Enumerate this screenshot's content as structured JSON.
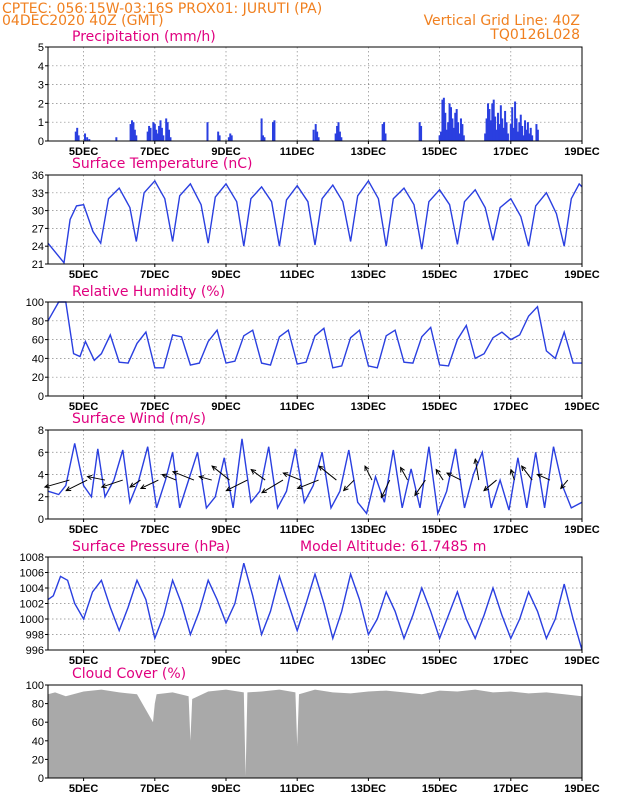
{
  "header": {
    "line1": "CPTEC:   056:15W-03:16S   PROX01: JURUTI (PA)",
    "line2": "04DEC2020 40Z (GMT)",
    "grid_note": "Vertical Grid Line: 40Z",
    "code": "TQ0126L028"
  },
  "colors": {
    "line": "#2a3fe0",
    "bar": "#2a3fe0",
    "cloud": "#a9a9a9",
    "title": "#e0007f",
    "header": "#f08020",
    "arrow": "#000000"
  },
  "x_axis": {
    "start_day": 4.0,
    "end_day": 19.0,
    "tick_days": [
      5,
      7,
      9,
      11,
      13,
      15,
      17,
      19
    ],
    "tick_labels": [
      "5DEC",
      "7DEC",
      "9DEC",
      "11DEC",
      "13DEC",
      "15DEC",
      "17DEC",
      "19DEC"
    ]
  },
  "chart_data": [
    {
      "type": "bar",
      "id": "precip",
      "title": "Precipitation (mm/h)",
      "ylim": [
        0,
        5
      ],
      "yticks": [
        0,
        1,
        2,
        3,
        4,
        5
      ],
      "grid": true,
      "x": [
        4.78,
        4.82,
        4.86,
        5.04,
        5.1,
        5.16,
        5.92,
        6.32,
        6.36,
        6.4,
        6.44,
        6.48,
        6.8,
        6.84,
        6.88,
        6.96,
        7.0,
        7.04,
        7.08,
        7.12,
        7.16,
        7.2,
        7.24,
        7.32,
        7.36,
        7.4,
        7.44,
        8.48,
        8.78,
        8.82,
        9.08,
        9.12,
        9.16,
        10.0,
        10.04,
        10.08,
        10.32,
        10.36,
        11.46,
        11.52,
        11.56,
        11.6,
        12.08,
        12.12,
        12.16,
        12.2,
        12.24,
        13.4,
        13.44,
        13.48,
        14.44,
        14.48,
        15.0,
        15.04,
        15.08,
        15.12,
        15.16,
        15.2,
        15.24,
        15.28,
        15.32,
        15.36,
        15.4,
        15.44,
        15.48,
        15.52,
        15.56,
        15.6,
        15.64,
        15.68,
        16.28,
        16.32,
        16.36,
        16.4,
        16.44,
        16.48,
        16.52,
        16.56,
        16.6,
        16.64,
        16.68,
        16.72,
        16.76,
        16.8,
        16.84,
        16.88,
        16.92,
        17.0,
        17.04,
        17.08,
        17.12,
        17.16,
        17.2,
        17.24,
        17.28,
        17.32,
        17.36,
        17.4,
        17.44,
        17.48,
        17.52,
        17.56,
        17.6,
        17.72,
        17.76
      ],
      "values": [
        0.5,
        0.7,
        0.3,
        0.4,
        0.2,
        0.1,
        0.2,
        0.9,
        1.1,
        1.0,
        0.6,
        0.3,
        0.5,
        0.8,
        0.7,
        1.0,
        0.9,
        0.6,
        0.4,
        0.8,
        1.1,
        0.7,
        0.3,
        1.2,
        1.0,
        0.6,
        0.2,
        1.0,
        0.5,
        0.3,
        0.2,
        0.4,
        0.3,
        1.2,
        0.3,
        0.2,
        1.0,
        1.1,
        0.6,
        0.9,
        0.5,
        0.2,
        0.4,
        0.8,
        1.0,
        0.5,
        0.2,
        0.9,
        1.0,
        0.4,
        1.0,
        0.8,
        0.3,
        0.5,
        2.2,
        2.3,
        1.5,
        0.6,
        1.0,
        2.0,
        1.8,
        1.2,
        0.7,
        1.5,
        1.7,
        1.0,
        0.4,
        1.2,
        0.9,
        0.3,
        0.4,
        1.2,
        2.0,
        1.7,
        1.1,
        2.0,
        2.2,
        1.3,
        0.6,
        1.5,
        0.9,
        1.9,
        1.2,
        0.7,
        1.6,
        1.0,
        0.4,
        0.9,
        1.8,
        0.7,
        2.1,
        1.2,
        0.5,
        1.0,
        1.4,
        0.8,
        0.3,
        1.1,
        0.6,
        1.0,
        0.4,
        0.7,
        0.3,
        0.9,
        0.6
      ]
    },
    {
      "type": "line",
      "id": "temp",
      "title": "Surface Temperature (nC)",
      "ylim": [
        21,
        36
      ],
      "yticks": [
        21,
        24,
        27,
        30,
        33,
        36
      ],
      "grid": true,
      "x": [
        4.0,
        4.45,
        4.62,
        4.8,
        5.0,
        5.26,
        5.48,
        5.7,
        6.0,
        6.3,
        6.48,
        6.7,
        7.0,
        7.28,
        7.5,
        7.7,
        8.0,
        8.3,
        8.5,
        8.7,
        9.0,
        9.3,
        9.5,
        9.7,
        10.0,
        10.28,
        10.5,
        10.7,
        11.0,
        11.3,
        11.5,
        11.7,
        12.0,
        12.28,
        12.5,
        12.7,
        13.0,
        13.28,
        13.5,
        13.7,
        14.0,
        14.28,
        14.5,
        14.7,
        15.0,
        15.28,
        15.5,
        15.7,
        16.0,
        16.28,
        16.5,
        16.7,
        17.0,
        17.28,
        17.5,
        17.7,
        18.0,
        18.28,
        18.5,
        18.7,
        18.92,
        19.0
      ],
      "values": [
        24.5,
        21.2,
        28.5,
        30.8,
        31.0,
        26.5,
        24.5,
        32.0,
        33.8,
        30.5,
        24.8,
        33.0,
        35.0,
        32.0,
        24.8,
        32.5,
        34.5,
        31.0,
        24.5,
        32.3,
        34.5,
        31.5,
        24.0,
        32.0,
        34.0,
        31.5,
        24.0,
        31.8,
        34.2,
        31.5,
        24.2,
        32.0,
        34.3,
        31.5,
        24.8,
        32.5,
        35.0,
        32.0,
        24.0,
        32.0,
        33.8,
        31.0,
        23.5,
        31.5,
        33.5,
        31.0,
        24.3,
        31.5,
        33.5,
        30.5,
        25.0,
        30.5,
        32.0,
        29.0,
        24.0,
        30.8,
        33.0,
        29.5,
        24.0,
        32.0,
        34.5,
        34.0
      ]
    },
    {
      "type": "line",
      "id": "rh",
      "title": "Relative Humidity (%)",
      "ylim": [
        0,
        100
      ],
      "yticks": [
        0,
        20,
        40,
        60,
        80,
        100
      ],
      "grid": true,
      "x": [
        4.0,
        4.3,
        4.5,
        4.72,
        4.9,
        5.05,
        5.3,
        5.5,
        5.75,
        6.0,
        6.25,
        6.5,
        6.75,
        7.0,
        7.25,
        7.5,
        7.75,
        8.0,
        8.25,
        8.5,
        8.75,
        9.0,
        9.25,
        9.5,
        9.75,
        10.0,
        10.25,
        10.5,
        10.75,
        11.0,
        11.25,
        11.5,
        11.75,
        12.0,
        12.25,
        12.5,
        12.75,
        13.0,
        13.25,
        13.5,
        13.75,
        14.0,
        14.25,
        14.5,
        14.75,
        15.0,
        15.25,
        15.5,
        15.75,
        16.0,
        16.25,
        16.5,
        16.75,
        17.0,
        17.25,
        17.5,
        17.75,
        18.0,
        18.25,
        18.5,
        18.75,
        19.0
      ],
      "values": [
        80,
        100,
        100,
        45,
        42,
        58,
        38,
        45,
        65,
        36,
        35,
        56,
        68,
        30,
        30,
        65,
        63,
        33,
        35,
        58,
        70,
        35,
        37,
        64,
        70,
        35,
        33,
        63,
        70,
        34,
        36,
        64,
        72,
        30,
        32,
        62,
        70,
        32,
        30,
        64,
        70,
        36,
        35,
        63,
        73,
        33,
        32,
        60,
        75,
        40,
        45,
        62,
        68,
        60,
        65,
        85,
        95,
        48,
        40,
        68,
        35,
        35
      ]
    },
    {
      "type": "line",
      "id": "wind",
      "title": "Surface Wind (m/s)",
      "ylim": [
        0,
        8
      ],
      "yticks": [
        0,
        2,
        4,
        6,
        8
      ],
      "grid": true,
      "x": [
        4.0,
        4.3,
        4.5,
        4.75,
        5.0,
        5.22,
        5.4,
        5.6,
        5.85,
        6.1,
        6.3,
        6.55,
        6.8,
        7.05,
        7.3,
        7.5,
        7.7,
        7.95,
        8.2,
        8.45,
        8.7,
        8.95,
        9.2,
        9.45,
        9.7,
        9.95,
        10.2,
        10.45,
        10.7,
        10.95,
        11.2,
        11.45,
        11.7,
        11.95,
        12.2,
        12.45,
        12.7,
        12.95,
        13.2,
        13.45,
        13.7,
        13.95,
        14.2,
        14.45,
        14.7,
        14.95,
        15.2,
        15.45,
        15.7,
        15.95,
        16.2,
        16.45,
        16.7,
        16.95,
        17.2,
        17.45,
        17.7,
        17.95,
        18.2,
        18.45,
        18.7,
        19.0
      ],
      "values": [
        2.5,
        2.2,
        3.0,
        6.8,
        3.0,
        2.0,
        6.3,
        2.0,
        3.5,
        6.2,
        1.5,
        3.5,
        6.5,
        1.0,
        3.5,
        6.0,
        1.0,
        3.5,
        6.0,
        1.0,
        2.0,
        5.5,
        1.0,
        7.2,
        1.5,
        2.5,
        6.5,
        1.0,
        2.5,
        6.3,
        1.5,
        3.0,
        6.0,
        1.0,
        2.5,
        6.2,
        1.5,
        0.5,
        3.8,
        1.5,
        6.2,
        1.0,
        4.5,
        1.0,
        6.5,
        0.5,
        2.5,
        6.3,
        1.0,
        4.0,
        6.0,
        1.0,
        3.5,
        0.8,
        5.5,
        1.0,
        6.0,
        1.0,
        6.5,
        3.0,
        1.0,
        1.5
      ],
      "arrows_x": [
        4.6,
        5.1,
        5.6,
        6.1,
        6.6,
        7.1,
        7.6,
        8.1,
        8.6,
        9.1,
        9.6,
        10.1,
        10.6,
        11.1,
        11.6,
        12.1,
        12.6,
        13.1,
        13.6,
        14.1,
        14.6,
        15.1,
        15.6,
        16.1,
        16.6,
        17.1,
        17.6,
        18.1,
        18.6
      ],
      "arrows_u": [
        -3.5,
        -3.0,
        -2.5,
        -3.0,
        -1.5,
        -2.5,
        -2.0,
        -3.0,
        -1.8,
        -2.5,
        -3.0,
        -2.0,
        -3.0,
        -2.5,
        -3.0,
        -2.5,
        -1.5,
        -1.0,
        -1.2,
        -1.0,
        -1.5,
        -1.0,
        -2.0,
        -0.5,
        -1.8,
        -0.5,
        -1.5,
        -1.8,
        -1.0
      ],
      "arrows_v": [
        -1.0,
        -1.5,
        0.5,
        -1.0,
        -1.0,
        -1.2,
        0.8,
        1.2,
        0.5,
        2.0,
        -1.5,
        1.5,
        -1.8,
        1.0,
        -1.2,
        2.0,
        -1.5,
        2.0,
        -2.5,
        1.8,
        -2.2,
        1.5,
        1.0,
        3.0,
        -1.5,
        1.5,
        2.0,
        0.8,
        -1.2
      ]
    },
    {
      "type": "line",
      "id": "press",
      "title": "Surface Pressure (hPa)",
      "subtitle": "Model Altitude: 61.7485 m",
      "ylim": [
        996,
        1008
      ],
      "yticks": [
        996,
        998,
        1000,
        1002,
        1004,
        1006,
        1008
      ],
      "grid": true,
      "x": [
        4.0,
        4.15,
        4.35,
        4.55,
        4.75,
        5.0,
        5.25,
        5.5,
        5.75,
        6.0,
        6.25,
        6.5,
        6.75,
        7.0,
        7.25,
        7.5,
        7.75,
        8.0,
        8.25,
        8.5,
        8.75,
        9.0,
        9.25,
        9.5,
        9.75,
        10.0,
        10.25,
        10.5,
        10.75,
        11.0,
        11.25,
        11.5,
        11.75,
        12.0,
        12.25,
        12.5,
        12.75,
        13.0,
        13.25,
        13.5,
        13.75,
        14.0,
        14.25,
        14.5,
        14.75,
        15.0,
        15.25,
        15.5,
        15.75,
        16.0,
        16.25,
        16.5,
        16.75,
        17.0,
        17.25,
        17.5,
        17.75,
        18.0,
        18.25,
        18.5,
        18.75,
        19.0
      ],
      "values": [
        1002.5,
        1003.0,
        1005.5,
        1005.0,
        1002.0,
        1000.0,
        1003.5,
        1005.0,
        1001.5,
        998.5,
        1001.5,
        1005.0,
        1002.5,
        997.5,
        1000.5,
        1005.0,
        1002.0,
        998.0,
        1001.0,
        1005.0,
        1002.5,
        999.5,
        1002.0,
        1007.2,
        1003.0,
        998.0,
        1001.0,
        1005.5,
        1002.0,
        998.5,
        1002.0,
        1005.8,
        1002.0,
        997.5,
        1001.0,
        1005.8,
        1002.5,
        998.0,
        1000.0,
        1003.5,
        1001.0,
        997.5,
        1000.5,
        1004.0,
        1001.0,
        997.5,
        1000.5,
        1003.5,
        1000.0,
        997.5,
        1000.5,
        1004.0,
        1000.5,
        997.5,
        1000.0,
        1003.5,
        1001.0,
        997.5,
        1000.0,
        1004.5,
        1000.0,
        996.0
      ]
    },
    {
      "type": "area",
      "id": "cloud",
      "title": "Cloud Cover (%)",
      "ylim": [
        0,
        100
      ],
      "yticks": [
        0,
        20,
        40,
        60,
        80,
        100
      ],
      "grid": false,
      "x": [
        4.0,
        4.2,
        4.5,
        5.0,
        5.5,
        6.0,
        6.5,
        6.95,
        7.0,
        7.05,
        7.5,
        7.95,
        8.0,
        8.05,
        8.5,
        9.0,
        9.5,
        9.55,
        9.6,
        10.0,
        10.5,
        10.95,
        11.0,
        11.05,
        11.5,
        12.0,
        12.5,
        13.0,
        13.5,
        14.0,
        14.5,
        15.0,
        15.5,
        16.0,
        16.5,
        17.0,
        17.5,
        18.0,
        18.5,
        19.0
      ],
      "values": [
        90,
        92,
        88,
        93,
        95,
        92,
        90,
        60,
        80,
        90,
        92,
        88,
        40,
        85,
        93,
        95,
        92,
        2,
        92,
        93,
        95,
        92,
        35,
        90,
        95,
        92,
        91,
        93,
        94,
        92,
        90,
        94,
        93,
        95,
        92,
        93,
        91,
        92,
        90,
        88
      ]
    }
  ]
}
